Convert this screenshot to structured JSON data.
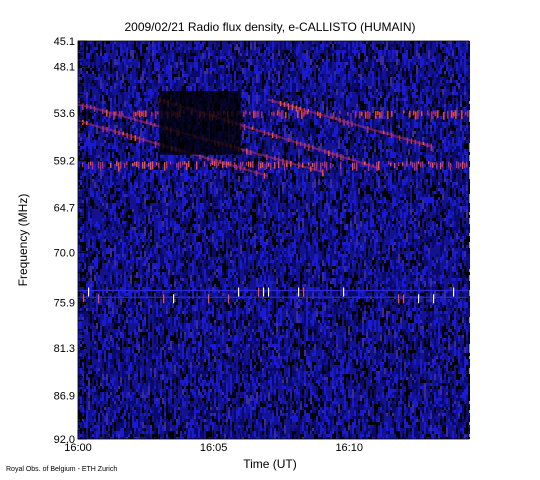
{
  "chart_data": {
    "type": "heatmap",
    "title": "2009/02/21  Radio flux density, e-CALLISTO (HUMAIN)",
    "xlabel": "Time (UT)",
    "ylabel": "Frequency (MHz)",
    "x_range": [
      "16:00",
      "16:14:25"
    ],
    "y_range_mhz": [
      45.1,
      92.0
    ],
    "y_inverted": true,
    "x_ticks": [
      "16:00",
      "16:05",
      "16:10"
    ],
    "y_ticks": [
      "45.1",
      "48.1",
      "53.6",
      "59.2",
      "64.7",
      "70.0",
      "75.9",
      "81.3",
      "86.9",
      "92.0"
    ],
    "colormap": [
      "#000000",
      "#0a0a6a",
      "#1a1ad0",
      "#b03070",
      "#ff5020",
      "#ffffff"
    ],
    "features": [
      {
        "kind": "drifting burst lane",
        "start": "16:00",
        "end": "16:09",
        "freq_start_mhz": 52.5,
        "freq_end_mhz": 60.5
      },
      {
        "kind": "drifting burst lane",
        "start": "16:00",
        "end": "16:07",
        "freq_start_mhz": 54.5,
        "freq_end_mhz": 61.0
      },
      {
        "kind": "drifting burst lane",
        "start": "16:03",
        "end": "16:11",
        "freq_start_mhz": 52.0,
        "freq_end_mhz": 60.0
      },
      {
        "kind": "drifting burst lane",
        "start": "16:07",
        "end": "16:13",
        "freq_start_mhz": 52.0,
        "freq_end_mhz": 57.5
      },
      {
        "kind": "bright band",
        "freq_mhz": 53.6,
        "start": "16:01",
        "end": "16:14:25"
      },
      {
        "kind": "bright band",
        "freq_mhz": 59.6,
        "start": "16:00",
        "end": "16:14:25"
      },
      {
        "kind": "dark patch",
        "freq_low_mhz": 51.0,
        "freq_high_mhz": 58.5,
        "start": "16:03",
        "end": "16:06"
      },
      {
        "kind": "interference line",
        "freq_mhz": 74.5,
        "start": "16:00",
        "end": "16:14:25"
      },
      {
        "kind": "interference line",
        "freq_mhz": 75.3,
        "start": "16:00",
        "end": "16:14:25"
      }
    ]
  },
  "credit": "Royal Obs. of Belgium - ETH Zurich"
}
